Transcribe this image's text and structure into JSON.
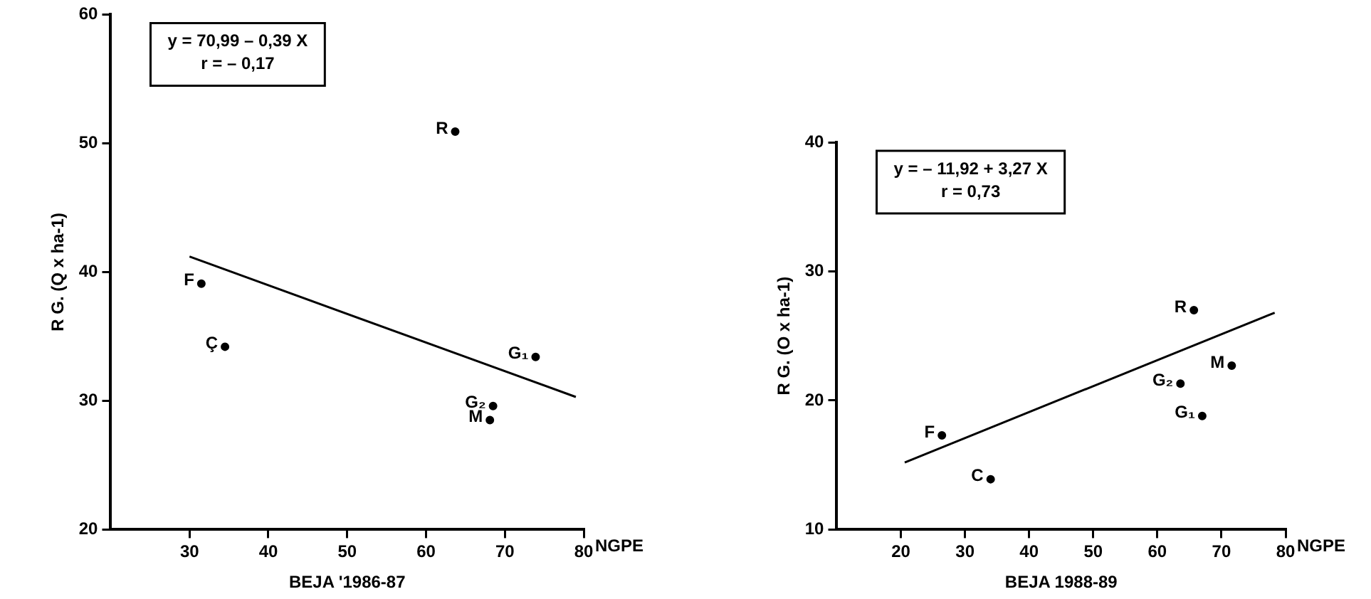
{
  "chart_data": [
    {
      "type": "scatter",
      "xlabel": "BEJA '1986-87",
      "ylabel": "R G. (Q x ha-1)",
      "xlim": [
        20,
        80
      ],
      "xticks": [
        30,
        40,
        50,
        60,
        70,
        80
      ],
      "ylim": [
        20,
        60
      ],
      "yticks": [
        20,
        30,
        40,
        50,
        60
      ],
      "grid": false,
      "legend": false,
      "marker": "circle",
      "annotations": [
        "y = 70,99 – 0,39 X",
        "r = – 0,17",
        "NGPE"
      ],
      "series": [
        {
          "name": "R",
          "color": "#000000",
          "x": [
            63.7
          ],
          "values": [
            50.9
          ]
        },
        {
          "name": "F",
          "color": "#000000",
          "x": [
            31.5
          ],
          "values": [
            39.1
          ]
        },
        {
          "name": "Ç",
          "color": "#000000",
          "x": [
            34.5
          ],
          "values": [
            34.2
          ]
        },
        {
          "name": "G₁",
          "color": "#000000",
          "x": [
            73.9
          ],
          "values": [
            33.4
          ]
        },
        {
          "name": "G₂",
          "color": "#000000",
          "x": [
            68.5
          ],
          "values": [
            29.6
          ]
        },
        {
          "name": "M",
          "color": "#000000",
          "x": [
            68.1
          ],
          "values": [
            28.5
          ]
        },
        {
          "type": "line",
          "color": "#000000",
          "marker": "none",
          "x": [
            30,
            79
          ],
          "values": [
            41.2,
            30.3
          ]
        }
      ]
    },
    {
      "type": "scatter",
      "xlabel": "BEJA 1988-89",
      "ylabel": "R G. (O x ha-1)",
      "xlim": [
        10,
        80
      ],
      "xticks": [
        20,
        30,
        40,
        50,
        60,
        70,
        80
      ],
      "ylim": [
        10,
        40
      ],
      "yticks": [
        10,
        20,
        30,
        40
      ],
      "grid": false,
      "legend": false,
      "marker": "circle",
      "annotations": [
        "y = – 11,92 + 3,27 X",
        "r = 0,73",
        "NGPE"
      ],
      "series": [
        {
          "name": "R",
          "color": "#000000",
          "x": [
            65.7
          ],
          "values": [
            27.0
          ]
        },
        {
          "name": "M",
          "color": "#000000",
          "x": [
            71.6
          ],
          "values": [
            22.7
          ]
        },
        {
          "name": "G₂",
          "color": "#000000",
          "x": [
            63.6
          ],
          "values": [
            21.3
          ]
        },
        {
          "name": "G₁",
          "color": "#000000",
          "x": [
            67.0
          ],
          "values": [
            18.8
          ]
        },
        {
          "name": "F",
          "color": "#000000",
          "x": [
            26.4
          ],
          "values": [
            17.3
          ]
        },
        {
          "name": "C",
          "color": "#000000",
          "x": [
            34.0
          ],
          "values": [
            13.9
          ]
        },
        {
          "type": "line",
          "color": "#000000",
          "marker": "none",
          "x": [
            20.6,
            78.3
          ],
          "values": [
            15.2,
            26.8
          ]
        }
      ]
    }
  ]
}
